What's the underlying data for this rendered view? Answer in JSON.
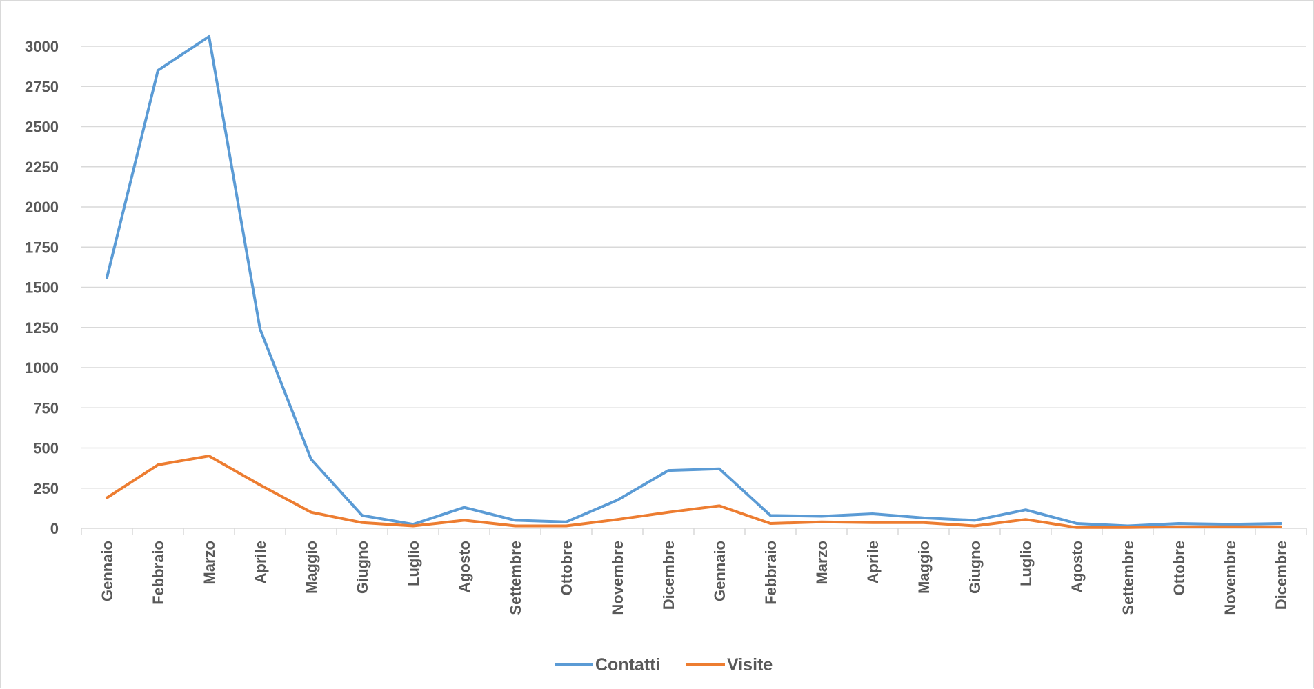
{
  "chart_data": {
    "type": "line",
    "categories": [
      "Gennaio",
      "Febbraio",
      "Marzo",
      "Aprile",
      "Maggio",
      "Giugno",
      "Luglio",
      "Agosto",
      "Settembre",
      "Ottobre",
      "Novembre",
      "Dicembre",
      "Gennaio",
      "Febbraio",
      "Marzo",
      "Aprile",
      "Maggio",
      "Giugno",
      "Luglio",
      "Agosto",
      "Settembre",
      "Ottobre",
      "Novembre",
      "Dicembre"
    ],
    "series": [
      {
        "name": "Contatti",
        "color": "#5b9bd5",
        "values": [
          1560,
          2850,
          3060,
          1240,
          430,
          80,
          25,
          130,
          50,
          40,
          175,
          360,
          370,
          80,
          75,
          90,
          65,
          50,
          115,
          30,
          15,
          30,
          25,
          30
        ]
      },
      {
        "name": "Visite",
        "color": "#ed7d31",
        "values": [
          190,
          395,
          450,
          270,
          100,
          35,
          15,
          50,
          15,
          15,
          55,
          100,
          140,
          30,
          40,
          35,
          35,
          15,
          55,
          5,
          5,
          10,
          10,
          10
        ]
      }
    ],
    "ylim": [
      0,
      3000
    ],
    "yticks": [
      0,
      250,
      500,
      750,
      1000,
      1250,
      1500,
      1750,
      2000,
      2250,
      2500,
      2750,
      3000
    ],
    "grid": true,
    "legend": "bottom",
    "title": "",
    "xlabel": "",
    "ylabel": ""
  }
}
